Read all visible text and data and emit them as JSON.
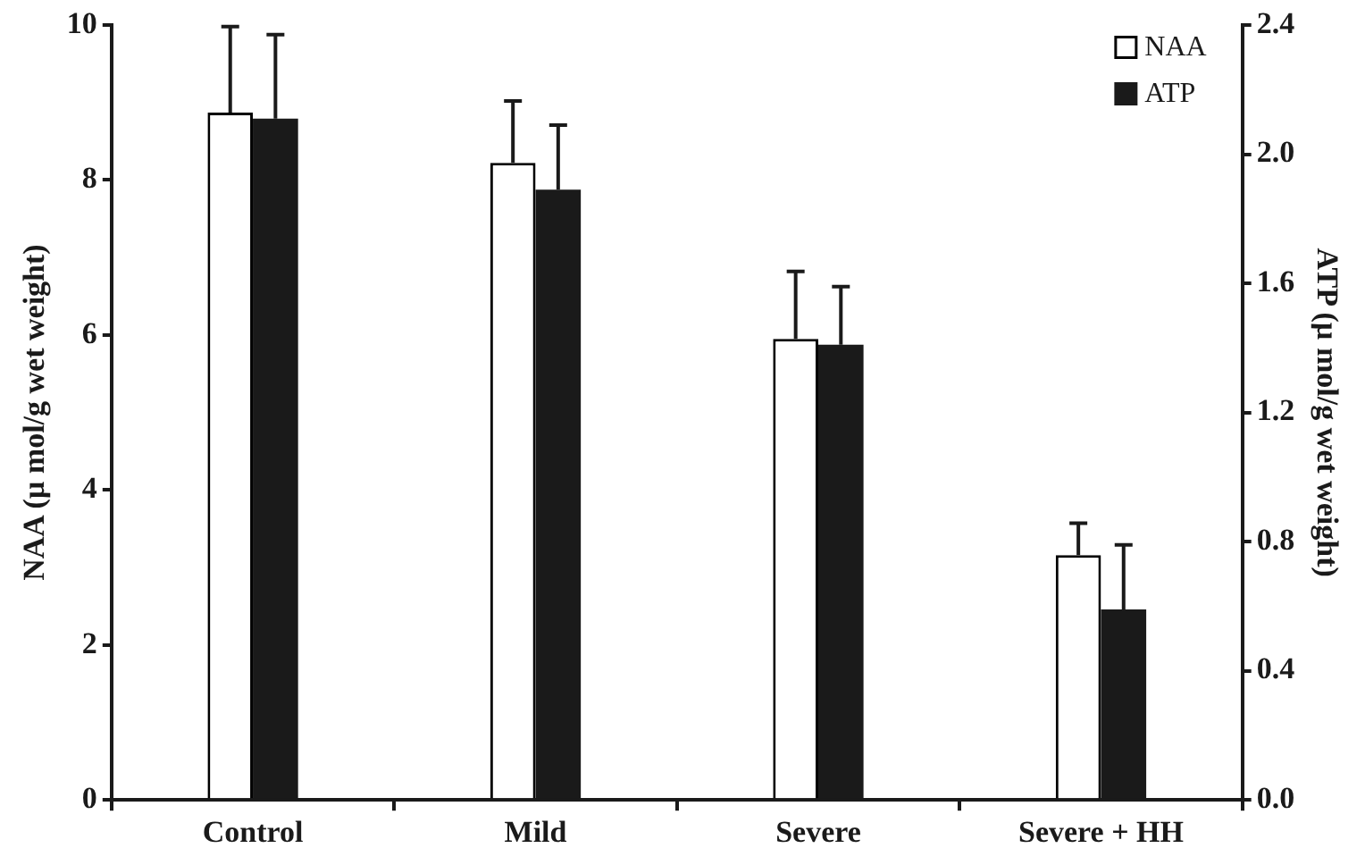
{
  "chart_data": {
    "type": "bar",
    "categories": [
      "Control",
      "Mild",
      "Severe",
      "Severe + HH"
    ],
    "series": [
      {
        "name": "NAA",
        "color": "#ffffff",
        "values": [
          8.87,
          8.22,
          5.95,
          3.16
        ],
        "errors": [
          [
            8.87,
            9.98
          ],
          [
            8.22,
            9.02
          ],
          [
            5.95,
            6.82
          ],
          [
            3.16,
            3.57
          ]
        ]
      },
      {
        "name": "ATP",
        "color": "#1a1a1a",
        "axis": "y2",
        "values": [
          2.11,
          1.89,
          1.41,
          0.59
        ],
        "errors": [
          [
            2.11,
            2.37
          ],
          [
            1.89,
            2.09
          ],
          [
            1.41,
            1.59
          ],
          [
            0.59,
            0.79
          ]
        ]
      }
    ],
    "ylabel": "NAA (µ mol/g wet weight)",
    "y2label": "ATP (µ mol/g wet weight)",
    "ylim": [
      0,
      10
    ],
    "yticks": [
      0,
      2,
      4,
      6,
      8,
      10
    ],
    "y2lim": [
      0,
      2.4
    ],
    "y2ticks": [
      {
        "value": 0,
        "label": "0.0"
      },
      {
        "value": 0.4,
        "label": "0.4"
      },
      {
        "value": 0.8,
        "label": "0.8"
      },
      {
        "value": 1.2,
        "label": "1.2"
      },
      {
        "value": 1.6,
        "label": "1.6"
      },
      {
        "value": 2.0,
        "label": "2.0"
      },
      {
        "value": 2.4,
        "label": "2.4"
      }
    ],
    "legend": "top right"
  }
}
